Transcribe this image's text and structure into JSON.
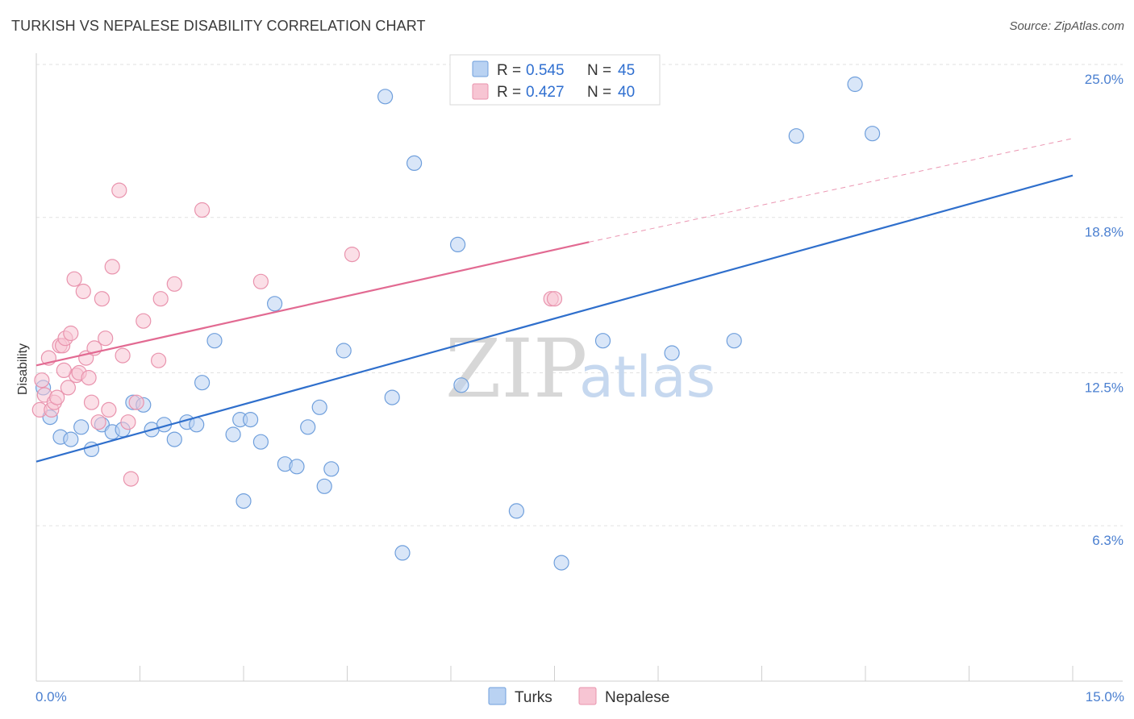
{
  "title": "TURKISH VS NEPALESE DISABILITY CORRELATION CHART",
  "source": "Source: ZipAtlas.com",
  "colors": {
    "turks_fill": "#b9d2f2",
    "turks_stroke": "#6f9fdc",
    "turks_line": "#2f6fcc",
    "nepalese_fill": "#f7c5d3",
    "nepalese_stroke": "#e993ad",
    "nepalese_line": "#e26a92",
    "grid": "#e2e2e2",
    "tick_text": "#4a7fd0"
  },
  "watermark": {
    "zip": "ZIP",
    "atlas": "atlas"
  },
  "chart_data": {
    "type": "scatter",
    "xlabel": "",
    "ylabel": "Disability",
    "xlim": [
      0,
      15
    ],
    "ylim": [
      0,
      25
    ],
    "x_tick_labels": {
      "min": "0.0%",
      "max": "15.0%"
    },
    "y_ticks": [
      {
        "value": 6.3,
        "label": "6.3%"
      },
      {
        "value": 12.5,
        "label": "12.5%"
      },
      {
        "value": 18.8,
        "label": "18.8%"
      },
      {
        "value": 25.0,
        "label": "25.0%"
      }
    ],
    "legend": {
      "rows": [
        {
          "r_label": "R =",
          "r_value": "0.545",
          "n_label": "N =",
          "n_value": "45"
        },
        {
          "r_label": "R =",
          "r_value": "0.427",
          "n_label": "N =",
          "n_value": "40"
        }
      ]
    },
    "series": [
      {
        "name": "Turks",
        "trend": {
          "x0": 0,
          "y0": 8.9,
          "x1": 15,
          "y1": 20.5
        },
        "points": [
          [
            0.1,
            11.9
          ],
          [
            0.2,
            10.7
          ],
          [
            0.35,
            9.9
          ],
          [
            0.5,
            9.8
          ],
          [
            0.65,
            10.3
          ],
          [
            0.8,
            9.4
          ],
          [
            0.95,
            10.4
          ],
          [
            1.1,
            10.1
          ],
          [
            1.25,
            10.2
          ],
          [
            1.4,
            11.3
          ],
          [
            1.55,
            11.2
          ],
          [
            1.67,
            10.2
          ],
          [
            1.85,
            10.4
          ],
          [
            2.0,
            9.8
          ],
          [
            2.18,
            10.5
          ],
          [
            2.32,
            10.4
          ],
          [
            2.4,
            12.1
          ],
          [
            2.58,
            13.8
          ],
          [
            2.85,
            10.0
          ],
          [
            2.95,
            10.6
          ],
          [
            3.0,
            7.3
          ],
          [
            3.1,
            10.6
          ],
          [
            3.25,
            9.7
          ],
          [
            3.45,
            15.3
          ],
          [
            3.6,
            8.8
          ],
          [
            3.77,
            8.7
          ],
          [
            3.93,
            10.3
          ],
          [
            4.1,
            11.1
          ],
          [
            4.17,
            7.9
          ],
          [
            4.27,
            8.6
          ],
          [
            4.45,
            13.4
          ],
          [
            5.05,
            23.7
          ],
          [
            5.15,
            11.5
          ],
          [
            5.3,
            5.2
          ],
          [
            5.47,
            21.0
          ],
          [
            6.1,
            17.7
          ],
          [
            6.15,
            12.0
          ],
          [
            6.95,
            6.9
          ],
          [
            7.6,
            4.8
          ],
          [
            8.2,
            13.8
          ],
          [
            9.2,
            13.3
          ],
          [
            10.1,
            13.8
          ],
          [
            11.0,
            22.1
          ],
          [
            11.85,
            24.2
          ],
          [
            12.1,
            22.2
          ]
        ]
      },
      {
        "name": "Nepalese",
        "trend": {
          "x0": 0,
          "y0": 12.8,
          "x1": 8.0,
          "y1": 17.8,
          "dash_x1": 15,
          "dash_y1": 22.0
        },
        "points": [
          [
            0.05,
            11.0
          ],
          [
            0.08,
            12.2
          ],
          [
            0.12,
            11.6
          ],
          [
            0.18,
            13.1
          ],
          [
            0.22,
            11.0
          ],
          [
            0.26,
            11.3
          ],
          [
            0.3,
            11.5
          ],
          [
            0.34,
            13.6
          ],
          [
            0.38,
            13.6
          ],
          [
            0.42,
            13.9
          ],
          [
            0.46,
            11.9
          ],
          [
            0.5,
            14.1
          ],
          [
            0.55,
            16.3
          ],
          [
            0.58,
            12.4
          ],
          [
            0.62,
            12.5
          ],
          [
            0.68,
            15.8
          ],
          [
            0.72,
            13.1
          ],
          [
            0.76,
            12.3
          ],
          [
            0.8,
            11.3
          ],
          [
            0.84,
            13.5
          ],
          [
            0.9,
            10.5
          ],
          [
            0.95,
            15.5
          ],
          [
            1.0,
            13.9
          ],
          [
            1.05,
            11.0
          ],
          [
            1.1,
            16.8
          ],
          [
            1.2,
            19.9
          ],
          [
            1.25,
            13.2
          ],
          [
            1.33,
            10.5
          ],
          [
            1.37,
            8.2
          ],
          [
            1.45,
            11.3
          ],
          [
            1.55,
            14.6
          ],
          [
            1.77,
            13.0
          ],
          [
            1.8,
            15.5
          ],
          [
            2.0,
            16.1
          ],
          [
            2.4,
            19.1
          ],
          [
            3.25,
            16.2
          ],
          [
            4.57,
            17.3
          ],
          [
            7.45,
            15.5
          ],
          [
            7.5,
            15.5
          ],
          [
            0.4,
            12.6
          ]
        ]
      }
    ]
  }
}
